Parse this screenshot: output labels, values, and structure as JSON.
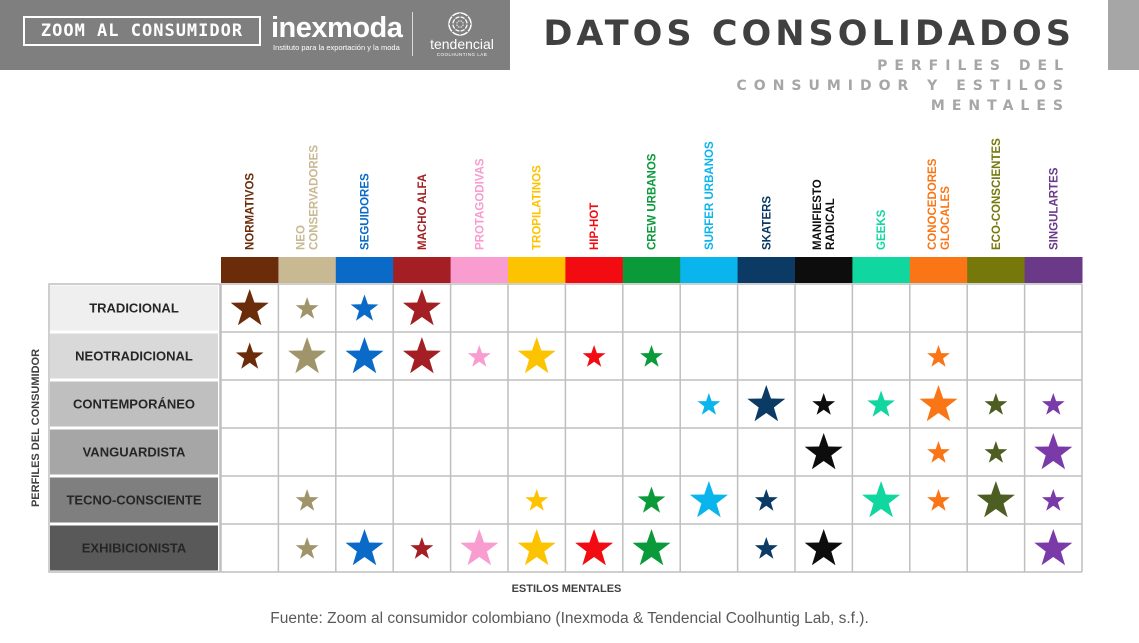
{
  "header": {
    "zoom_logo": "ZOOM AL CONSUMIDOR",
    "inexmoda_logo": "inexmoda",
    "inexmoda_tagline": "Instituto para la exportación y la moda",
    "tendencial_logo": "tendencial",
    "tendencial_tagline": "COOLHUNTING LAB",
    "title": "DATOS CONSOLIDADOS",
    "subtitle": "PERFILES DEL CONSUMIDOR Y ESTILOS MENTALES"
  },
  "chart_data": {
    "type": "table",
    "xlabel": "ESTILOS MENTALES",
    "ylabel": "PERFILES DEL CONSUMIDOR",
    "columns": [
      {
        "label": [
          "NORMATIVOS"
        ],
        "color": "#6b2c0a"
      },
      {
        "label": [
          "NEO",
          "CONSERVADORES"
        ],
        "color": "#c8b992"
      },
      {
        "label": [
          "SEGUIDORES"
        ],
        "color": "#0a6ac8"
      },
      {
        "label": [
          "MACHO ALFA"
        ],
        "color": "#a31f24"
      },
      {
        "label": [
          "PROTAGODIVAS"
        ],
        "color": "#f99ccf"
      },
      {
        "label": [
          "TROPILATINOS"
        ],
        "color": "#fdc300"
      },
      {
        "label": [
          "HIP-HOT"
        ],
        "color": "#f20c12"
      },
      {
        "label": [
          "CREW URBANOS"
        ],
        "color": "#0a9a3a"
      },
      {
        "label": [
          "SURFER URBANOS"
        ],
        "color": "#0ab4ec"
      },
      {
        "label": [
          "SKATERS"
        ],
        "color": "#0b3a64"
      },
      {
        "label": [
          "MANIFIESTO",
          "RADICAL"
        ],
        "color": "#0d0d0d"
      },
      {
        "label": [
          "GEEKS"
        ],
        "color": "#10d6a0"
      },
      {
        "label": [
          "CONOCEDORES",
          "GLOCALES"
        ],
        "color": "#fa7516"
      },
      {
        "label": [
          "ECO-CONSCIENTES"
        ],
        "color": "#76780a"
      },
      {
        "label": [
          "SINGULARTES"
        ],
        "color": "#6a3a88"
      }
    ],
    "star_colors": [
      "#6b2c0a",
      "#a0956a",
      "#0a6ac8",
      "#a31f24",
      "#f99ccf",
      "#fdc300",
      "#f20c12",
      "#0a9a3a",
      "#0ab4ec",
      "#0b3a64",
      "#0d0d0d",
      "#10d6a0",
      "#fa7516",
      "#4d5e23",
      "#7a3aa8"
    ],
    "rows": [
      {
        "label": "TRADICIONAL",
        "bg": "#efefef",
        "text": "#262626",
        "cells": [
          3,
          1,
          2,
          3,
          0,
          0,
          0,
          0,
          0,
          0,
          0,
          0,
          0,
          0,
          0
        ]
      },
      {
        "label": "NEOTRADICIONAL",
        "bg": "#d9d9d9",
        "text": "#262626",
        "cells": [
          2,
          3,
          3,
          3,
          1,
          3,
          1,
          1,
          0,
          0,
          0,
          0,
          1,
          0,
          0
        ]
      },
      {
        "label": "CONTEMPORÁNEO",
        "bg": "#bfbfbf",
        "text": "#262626",
        "cells": [
          0,
          0,
          0,
          0,
          0,
          0,
          0,
          0,
          1,
          3,
          1,
          2,
          3,
          1,
          1
        ]
      },
      {
        "label": "VANGUARDISTA",
        "bg": "#a6a6a6",
        "text": "#262626",
        "cells": [
          0,
          0,
          0,
          0,
          0,
          0,
          0,
          0,
          0,
          0,
          3,
          0,
          1,
          1,
          3
        ]
      },
      {
        "label": "TECNO-CONSCIENTE",
        "bg": "#7f7f7f",
        "text": "#262626",
        "cells": [
          0,
          1,
          0,
          0,
          0,
          1,
          0,
          2,
          3,
          1,
          0,
          3,
          1,
          3,
          1
        ]
      },
      {
        "label": "EXHIBICIONISTA",
        "bg": "#595959",
        "text": "#262626",
        "cells": [
          0,
          1,
          3,
          1,
          3,
          3,
          3,
          3,
          0,
          1,
          3,
          0,
          0,
          0,
          3
        ]
      }
    ]
  },
  "source": "Fuente: Zoom al consumidor colombiano (Inexmoda & Tendencial Coolhuntig Lab, s.f.)."
}
